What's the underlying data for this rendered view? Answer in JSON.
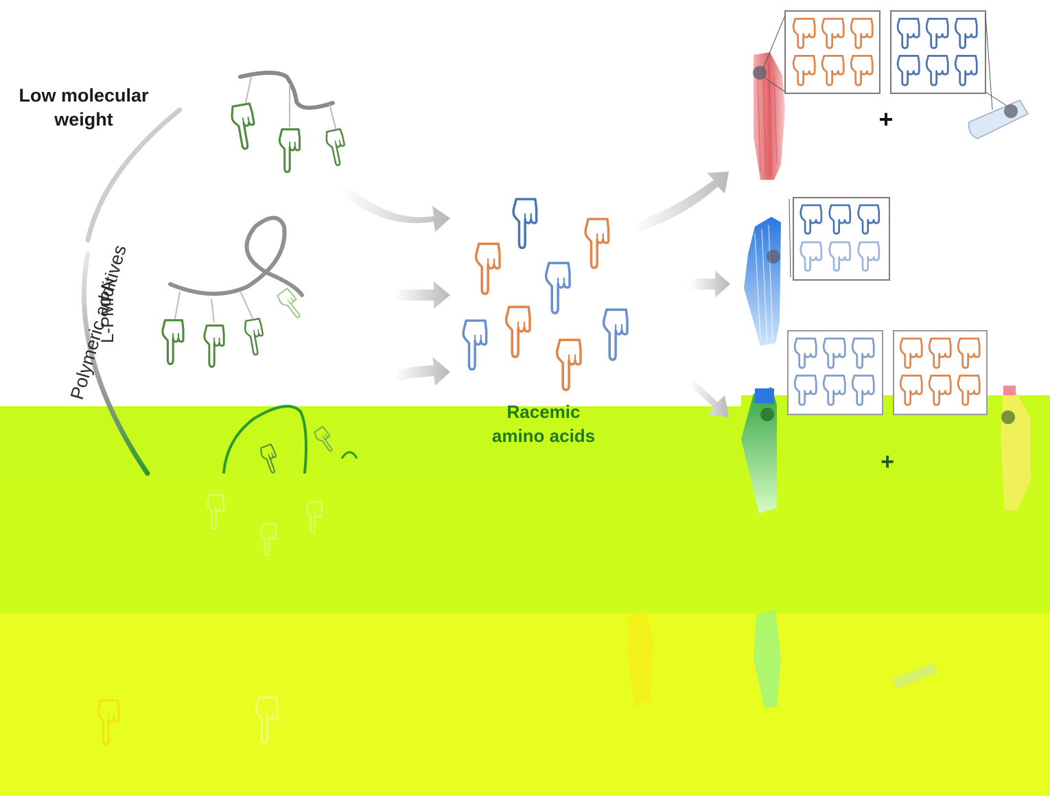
{
  "labels": {
    "low_mw_line1": "Low molecular",
    "low_mw_line2": "weight",
    "polymeric_additives": "Polymeric additives",
    "lpmpa": "L-PMPA",
    "racemic_line1": "Racemic",
    "racemic_line2": "amino acids",
    "plus": "+"
  },
  "colors": {
    "orange": "#e0864a",
    "blue": "#4a74b4",
    "light_blue": "#7f9fcf",
    "green": "#4f8a3f",
    "pale_green": "#9ccf8c",
    "red_crystal": "#e2646a",
    "blue_crystal": "#2a78e0",
    "yellow_green_overlay": "#c8fb1c",
    "yellow_overlay": "#e8fd20",
    "gray_arrow": "#c8c8c8",
    "text_green": "#1f7a1f"
  },
  "icons": [
    "pointing-hand-icon",
    "arrow-icon",
    "plus-icon",
    "crystal-rod-icon"
  ]
}
